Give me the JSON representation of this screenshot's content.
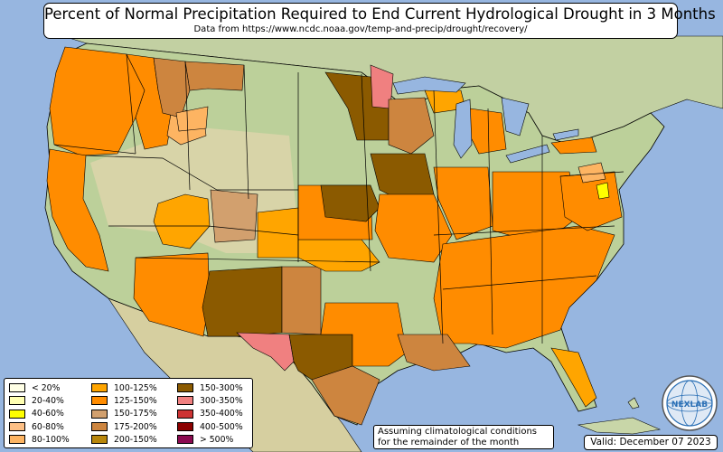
{
  "header": {
    "title": "Percent of Normal Precipitation Required to End Current Hydrological Drought in 3 Months",
    "subtitle": "Data from https://www.ncdc.noaa.gov/temp-and-precip/drought/recovery/"
  },
  "legend": {
    "columns": [
      [
        {
          "label": "< 20%",
          "color": "#ffffe6"
        },
        {
          "label": "20-40%",
          "color": "#ffffb2"
        },
        {
          "label": "40-60%",
          "color": "#ffff00"
        },
        {
          "label": "60-80%",
          "color": "#fdc086"
        },
        {
          "label": "80-100%",
          "color": "#fdb462"
        }
      ],
      [
        {
          "label": "100-125%",
          "color": "#ffa500"
        },
        {
          "label": "125-150%",
          "color": "#ff8c00"
        },
        {
          "label": "150-175%",
          "color": "#d2a06e"
        },
        {
          "label": "175-200%",
          "color": "#cd853f"
        },
        {
          "label": "200-150%",
          "color": "#b8860b"
        }
      ],
      [
        {
          "label": "150-300%",
          "color": "#8b5a00"
        },
        {
          "label": "300-350%",
          "color": "#f08080"
        },
        {
          "label": "350-400%",
          "color": "#cd3333"
        },
        {
          "label": "400-500%",
          "color": "#8b0000"
        },
        {
          "label": "> 500%",
          "color": "#8b0a50"
        }
      ]
    ]
  },
  "note": {
    "line1": "Assuming climatological conditions",
    "line2": "for the remainder of the month"
  },
  "valid_label": "Valid: December 07 2023",
  "logo": {
    "text": "NEXLAB",
    "icon": "globe-logo-icon"
  },
  "colors": {
    "ocean": "#97b6e0",
    "land_other": "#c8d6a8",
    "land_us_green": "#bcd09a",
    "land_us_dry": "#d8d4a8",
    "canada": "#c2d0a2",
    "mexico": "#d6cfa0"
  },
  "map": {
    "regions": [
      {
        "name": "pacific-northwest",
        "color": "#ff8c00"
      },
      {
        "name": "idaho-panhandle",
        "color": "#ff8c00"
      },
      {
        "name": "idaho-east",
        "color": "#fdb462"
      },
      {
        "name": "montana-west",
        "color": "#cd853f"
      },
      {
        "name": "montana-north",
        "color": "#cd853f"
      },
      {
        "name": "california",
        "color": "#ff8c00"
      },
      {
        "name": "nevada-central",
        "color": "#ffa500"
      },
      {
        "name": "utah",
        "color": "#d2a06e"
      },
      {
        "name": "colorado",
        "color": "#ffa500"
      },
      {
        "name": "arizona",
        "color": "#ff8c00"
      },
      {
        "name": "new-mexico-west",
        "color": "#8b5a00"
      },
      {
        "name": "new-mexico-east",
        "color": "#cd853f"
      },
      {
        "name": "texas-west",
        "color": "#f08080"
      },
      {
        "name": "texas-central",
        "color": "#8b5a00"
      },
      {
        "name": "texas-east",
        "color": "#ff8c00"
      },
      {
        "name": "texas-south",
        "color": "#cd853f"
      },
      {
        "name": "oklahoma-west",
        "color": "#ffa500"
      },
      {
        "name": "kansas",
        "color": "#ff8c00"
      },
      {
        "name": "nebraska",
        "color": "#8b5a00"
      },
      {
        "name": "iowa",
        "color": "#8b5a00"
      },
      {
        "name": "minnesota",
        "color": "#8b5a00"
      },
      {
        "name": "minnesota-ne",
        "color": "#f08080"
      },
      {
        "name": "wisconsin",
        "color": "#cd853f"
      },
      {
        "name": "michigan-up",
        "color": "#ffa500"
      },
      {
        "name": "michigan-lp",
        "color": "#ff8c00"
      },
      {
        "name": "missouri",
        "color": "#ff8c00"
      },
      {
        "name": "illinois-indiana",
        "color": "#ff8c00"
      },
      {
        "name": "ohio-valley",
        "color": "#ff8c00"
      },
      {
        "name": "southeast",
        "color": "#ff8c00"
      },
      {
        "name": "louisiana",
        "color": "#cd853f"
      },
      {
        "name": "florida-west",
        "color": "#ffa500"
      },
      {
        "name": "mid-atlantic",
        "color": "#ff8c00"
      },
      {
        "name": "virginia-coast",
        "color": "#fdb462"
      },
      {
        "name": "new-york",
        "color": "#ff8c00"
      },
      {
        "name": "maryland-small",
        "color": "#ffff00"
      }
    ],
    "lakes": [
      "lake-superior",
      "lake-michigan",
      "lake-huron",
      "lake-erie",
      "lake-ontario"
    ]
  }
}
